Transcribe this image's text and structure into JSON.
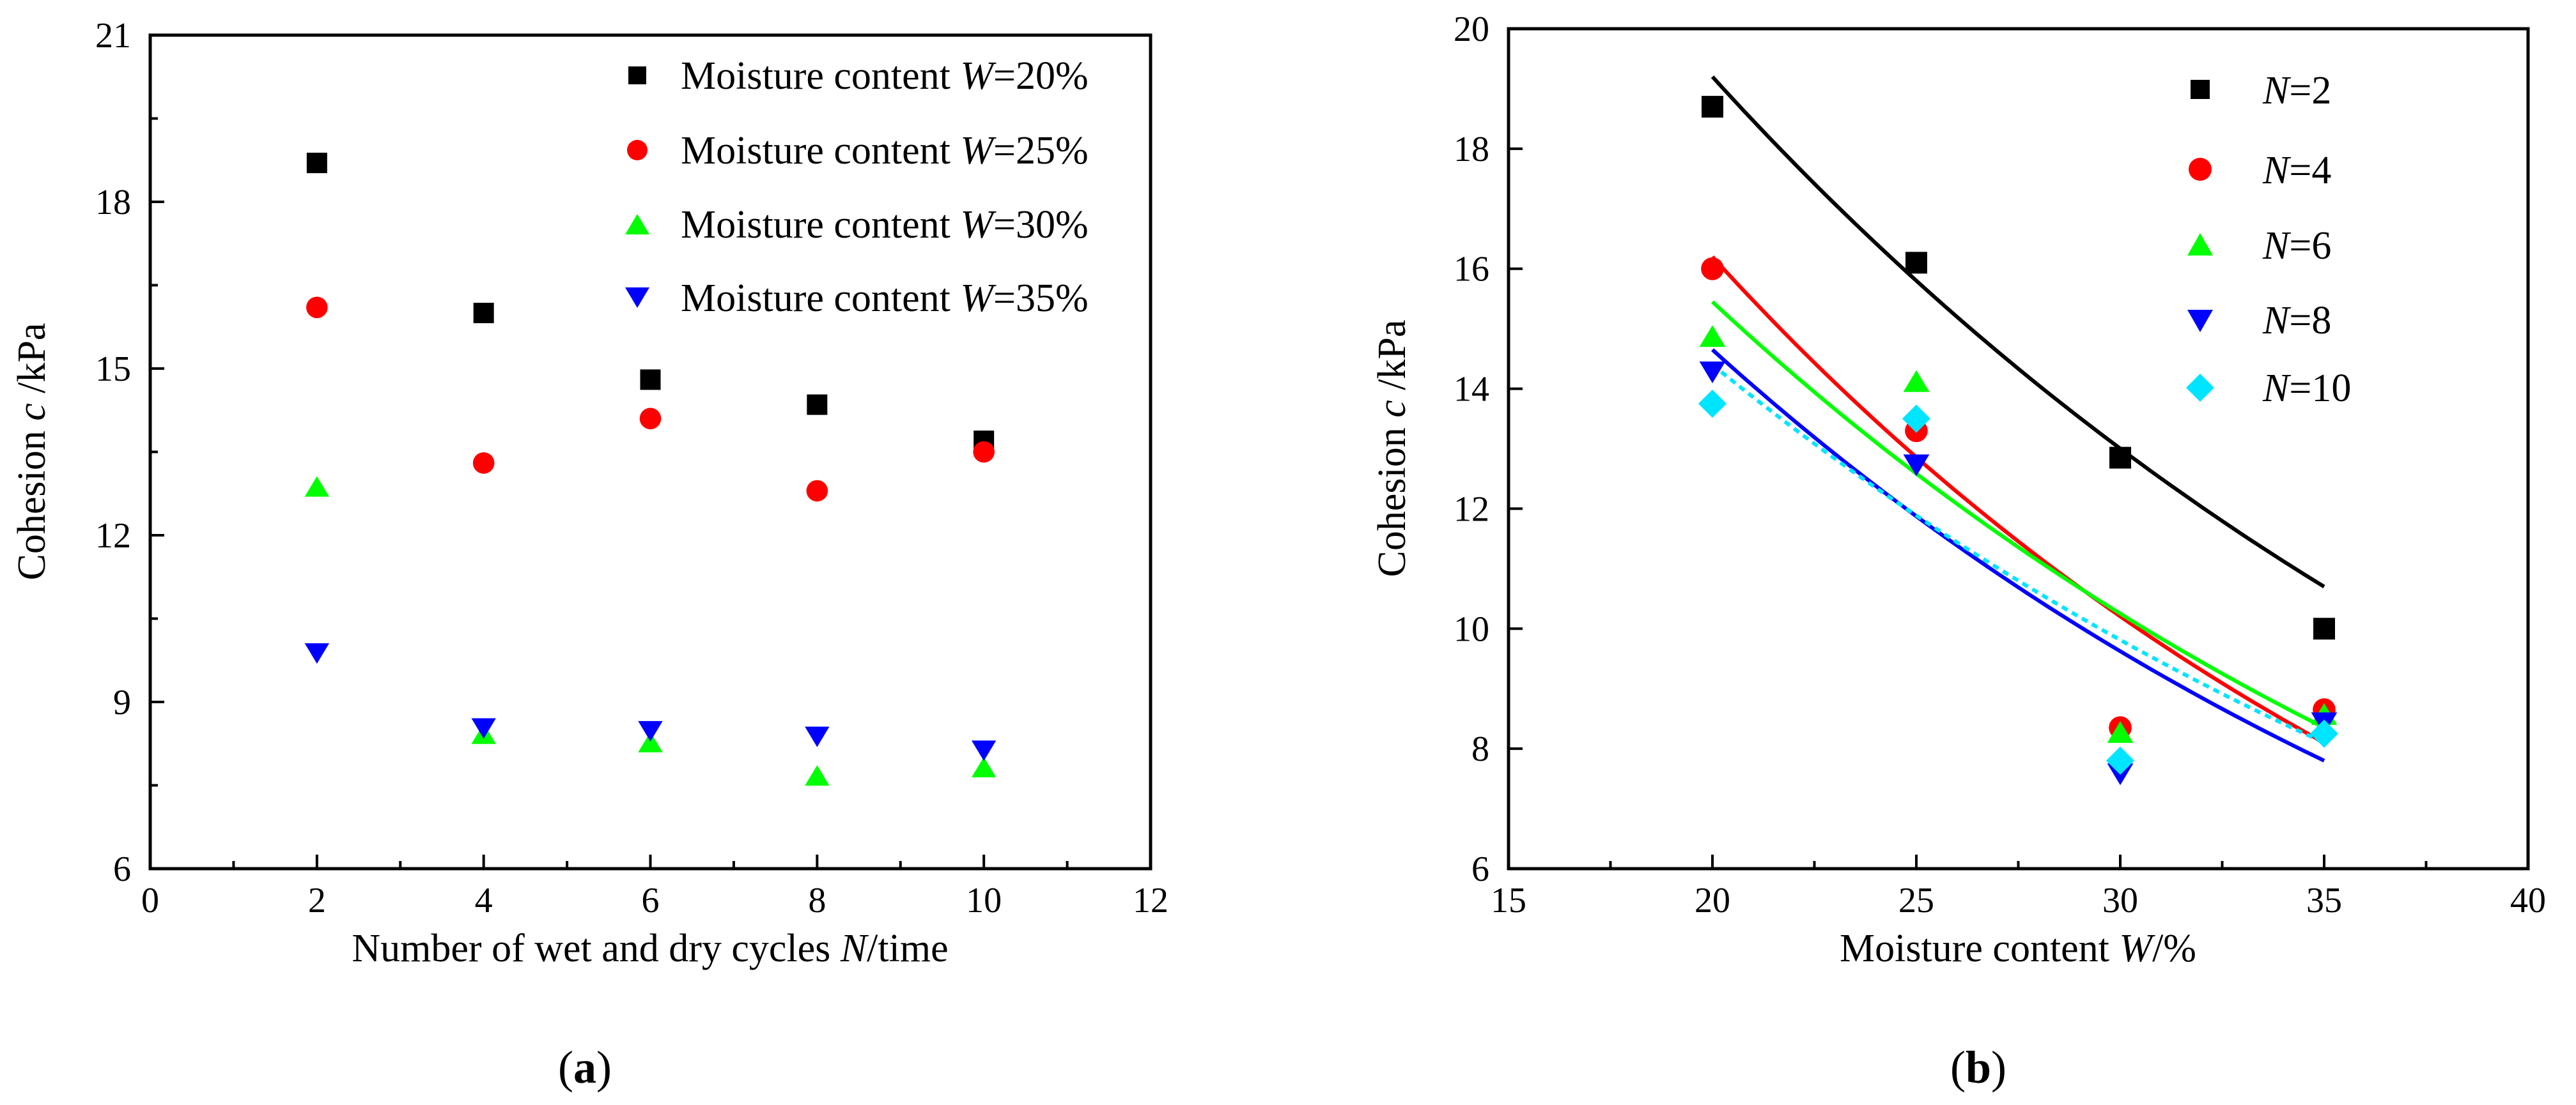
{
  "chart_data": [
    {
      "type": "scatter",
      "panel_label_open": "(",
      "panel_label_letter": "a",
      "panel_label_close": ")",
      "xlabel": {
        "prefix": "Number of wet and dry cycles ",
        "var": "N",
        "suffix": "/time"
      },
      "ylabel": {
        "prefix": "Cohesion ",
        "var": "c",
        "suffix": " /kPa"
      },
      "xlim": [
        0,
        12
      ],
      "ylim": [
        6,
        21
      ],
      "xticks": [
        "0",
        "2",
        "4",
        "6",
        "8",
        "10",
        "12"
      ],
      "yticks": [
        "6",
        "9",
        "12",
        "15",
        "18",
        "21"
      ],
      "legend_position": "top-right",
      "series": [
        {
          "name": "Moisture content W=20%",
          "legend_prefix": "Moisture content ",
          "legend_var": "W",
          "legend_suffix": "=20%",
          "color": "#000000",
          "marker": "square",
          "x": [
            2,
            4,
            6,
            8,
            10
          ],
          "y": [
            18.7,
            16.0,
            14.8,
            14.35,
            13.7
          ]
        },
        {
          "name": "Moisture content W=25%",
          "legend_prefix": "Moisture content ",
          "legend_var": "W",
          "legend_suffix": "=25%",
          "color": "#ff0000",
          "marker": "circle",
          "x": [
            2,
            4,
            6,
            8,
            10
          ],
          "y": [
            16.1,
            13.3,
            14.1,
            12.8,
            13.5
          ]
        },
        {
          "name": "Moisture content W=30%",
          "legend_prefix": "Moisture content ",
          "legend_var": "W",
          "legend_suffix": "=30%",
          "color": "#00ff00",
          "marker": "triangle-up",
          "x": [
            2,
            4,
            6,
            8,
            10
          ],
          "y": [
            12.85,
            8.4,
            8.25,
            7.65,
            7.8
          ]
        },
        {
          "name": "Moisture content W=35%",
          "legend_prefix": "Moisture content ",
          "legend_var": "W",
          "legend_suffix": "=35%",
          "color": "#0000ff",
          "marker": "triangle-down",
          "x": [
            2,
            4,
            6,
            8,
            10
          ],
          "y": [
            9.9,
            8.55,
            8.5,
            8.4,
            8.15
          ]
        }
      ]
    },
    {
      "type": "scatter",
      "panel_label_open": "(",
      "panel_label_letter": "b",
      "panel_label_close": ")",
      "xlabel": {
        "prefix": "Moisture content ",
        "var": "W",
        "suffix": "/%"
      },
      "ylabel": {
        "prefix": "Cohesion ",
        "var": "c",
        "suffix": " /kPa"
      },
      "xlim": [
        15,
        40
      ],
      "ylim": [
        6,
        20
      ],
      "xticks": [
        "15",
        "20",
        "25",
        "30",
        "35",
        "40"
      ],
      "yticks": [
        "6",
        "8",
        "10",
        "12",
        "14",
        "16",
        "18",
        "20"
      ],
      "legend_position": "top-right",
      "series": [
        {
          "name": "N=2",
          "legend_var": "N",
          "legend_suffix": "=2",
          "color": "#000000",
          "marker": "square",
          "x": [
            20,
            25,
            30,
            35
          ],
          "y": [
            18.7,
            16.1,
            12.85,
            10.0
          ],
          "fit": {
            "x_range": [
              20,
              35
            ],
            "y_start": 19.2,
            "y_end": 10.7
          }
        },
        {
          "name": "N=4",
          "legend_var": "N",
          "legend_suffix": "=4",
          "color": "#ff0000",
          "marker": "circle",
          "x": [
            20,
            25,
            30,
            35
          ],
          "y": [
            16.0,
            13.3,
            8.35,
            8.65
          ],
          "fit": {
            "x_range": [
              20,
              35
            ],
            "y_start": 16.2,
            "y_end": 8.1
          }
        },
        {
          "name": "N=6",
          "legend_var": "N",
          "legend_suffix": "=6",
          "color": "#00ff00",
          "marker": "triangle-up",
          "x": [
            20,
            25,
            30,
            35
          ],
          "y": [
            14.85,
            14.1,
            8.25,
            8.55
          ],
          "fit": {
            "x_range": [
              20,
              35
            ],
            "y_start": 15.45,
            "y_end": 8.35
          }
        },
        {
          "name": "N=8",
          "legend_var": "N",
          "legend_suffix": "=8",
          "color": "#0000ff",
          "marker": "triangle-down",
          "x": [
            20,
            25,
            30,
            35
          ],
          "y": [
            14.3,
            12.75,
            7.6,
            8.45
          ],
          "fit": {
            "x_range": [
              20,
              35
            ],
            "y_start": 14.65,
            "y_end": 7.8
          }
        },
        {
          "name": "N=10",
          "legend_var": "N",
          "legend_suffix": "=10",
          "color": "#00e5ff",
          "marker": "diamond",
          "x": [
            20,
            25,
            30,
            35
          ],
          "y": [
            13.75,
            13.5,
            7.8,
            8.25
          ],
          "fit": {
            "x_range": [
              20,
              35
            ],
            "y_start": 14.4,
            "y_end": 8.1,
            "dashed": true
          }
        }
      ]
    }
  ]
}
